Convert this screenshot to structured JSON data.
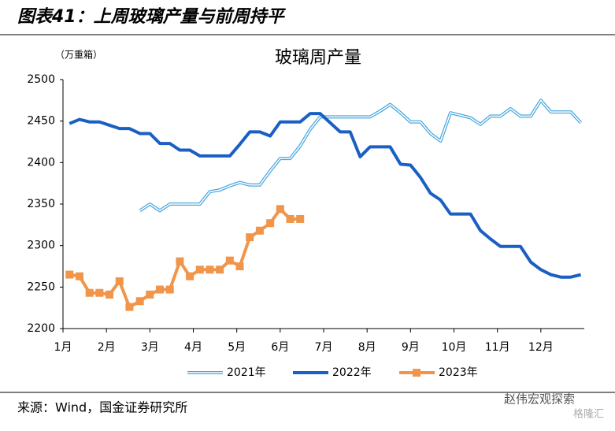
{
  "figure_title": "图表41：上周玻璃产量与前周持平",
  "source": "来源：Wind，国金证券研究所",
  "watermark": [
    "赵伟宏观探索",
    "格隆汇"
  ],
  "chart_data": {
    "type": "line",
    "title": "玻璃周产量",
    "y_unit": "（万重箱）",
    "x": [
      1.15,
      1.38,
      1.61,
      1.84,
      2.07,
      2.3,
      2.53,
      2.77,
      3.0,
      3.23,
      3.46,
      3.69,
      3.92,
      4.15,
      4.38,
      4.61,
      4.84,
      5.07,
      5.3,
      5.53,
      5.77,
      6.0,
      6.23,
      6.46,
      6.69,
      6.92,
      7.15,
      7.38,
      7.61,
      7.84,
      8.07,
      8.3,
      8.53,
      8.77,
      9.0,
      9.23,
      9.46,
      9.69,
      9.92,
      10.15,
      10.38,
      10.61,
      10.84,
      11.07,
      11.3,
      11.53,
      11.77,
      12.0,
      12.23,
      12.46,
      12.69,
      12.92
    ],
    "xlim": [
      1,
      13
    ],
    "xticks": [
      {
        "value": 1,
        "label": "1月"
      },
      {
        "value": 2,
        "label": "2月"
      },
      {
        "value": 3,
        "label": "3月"
      },
      {
        "value": 4,
        "label": "4月"
      },
      {
        "value": 5,
        "label": "5月"
      },
      {
        "value": 6,
        "label": "6月"
      },
      {
        "value": 7,
        "label": "7月"
      },
      {
        "value": 8,
        "label": "8月"
      },
      {
        "value": 9,
        "label": "9月"
      },
      {
        "value": 10,
        "label": "10月"
      },
      {
        "value": 11,
        "label": "11月"
      },
      {
        "value": 12,
        "label": "12月"
      }
    ],
    "ylim": [
      2200,
      2500
    ],
    "yticks": [
      2200,
      2250,
      2300,
      2350,
      2400,
      2450,
      2500
    ],
    "legend": "bottom",
    "series": [
      {
        "name": "2021年",
        "color": "#4aa8e0",
        "style": "double",
        "values": [
          null,
          null,
          null,
          null,
          null,
          null,
          null,
          2342,
          2350,
          2342,
          2350,
          2350,
          2350,
          2350,
          2365,
          2367,
          2372,
          2376,
          2373,
          2373,
          2390,
          2405,
          2405,
          2420,
          2440,
          2455,
          2455,
          2455,
          2455,
          2455,
          2455,
          2462,
          2470,
          2460,
          2449,
          2449,
          2435,
          2426,
          2460,
          2457,
          2454,
          2446,
          2456,
          2456,
          2465,
          2456,
          2456,
          2475,
          2461,
          2461,
          2461,
          2448
        ]
      },
      {
        "name": "2022年",
        "color": "#1a5fc4",
        "style": "solid",
        "values": [
          2447,
          2452,
          2449,
          2449,
          2445,
          2441,
          2441,
          2435,
          2435,
          2423,
          2423,
          2415,
          2415,
          2408,
          2408,
          2408,
          2408,
          2422,
          2437,
          2437,
          2432,
          2449,
          2449,
          2449,
          2459,
          2459,
          2448,
          2437,
          2437,
          2407,
          2419,
          2419,
          2419,
          2398,
          2397,
          2382,
          2363,
          2355,
          2338,
          2338,
          2338,
          2318,
          2308,
          2299,
          2299,
          2299,
          2280,
          2271,
          2265,
          2262,
          2262,
          2265
        ]
      },
      {
        "name": "2023年",
        "color": "#f0954a",
        "style": "marker",
        "values": [
          2265,
          2263,
          2243,
          2243,
          2241,
          2257,
          2226,
          2233,
          2241,
          2247,
          2247,
          2281,
          2263,
          2271,
          2271,
          2271,
          2282,
          2275,
          2310,
          2318,
          2327,
          2344,
          2332,
          2332,
          null,
          null,
          null,
          null,
          null,
          null,
          null,
          null,
          null,
          null,
          null,
          null,
          null,
          null,
          null,
          null,
          null,
          null,
          null,
          null,
          null,
          null,
          null,
          null,
          null,
          null,
          null,
          null
        ]
      }
    ]
  }
}
